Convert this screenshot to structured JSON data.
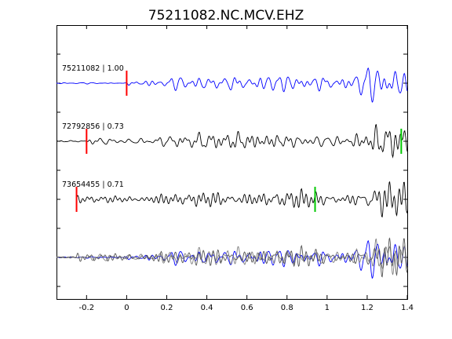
{
  "chart_data": {
    "type": "line",
    "title": "75211082.NC.MCV.EHZ",
    "xlabel": "",
    "ylabel": "",
    "xlim": [
      -0.35,
      1.4
    ],
    "x_ticks": [
      -0.2,
      0,
      0.2,
      0.4,
      0.6,
      0.8,
      1,
      1.2,
      1.4
    ],
    "x_tick_labels": [
      "-0.2",
      "0",
      "0.2",
      "0.4",
      "0.6",
      "0.8",
      "1",
      "1.2",
      "1.4"
    ],
    "grid": false,
    "legend": "none",
    "colors": {
      "reference_trace": "#0000ff",
      "other_trace": "#000000",
      "overlay_other": "#808080",
      "p_pick": "#ff0000",
      "s_pick": "#00c800",
      "axis": "#000000"
    },
    "traces": [
      {
        "label": "75211082 | 1.00",
        "event_id": "75211082",
        "correlation": 1.0,
        "start": -0.35,
        "p_pick": 0.0,
        "s_pick": null,
        "color": "blue"
      },
      {
        "label": "72792856 | 0.73",
        "event_id": "72792856",
        "correlation": 0.73,
        "start": -0.35,
        "p_pick": -0.2,
        "s_pick": 1.37,
        "color": "black"
      },
      {
        "label": "73654455 | 0.71",
        "event_id": "73654455",
        "correlation": 0.71,
        "start": -0.25,
        "p_pick": -0.25,
        "s_pick": 0.94,
        "color": "black"
      }
    ],
    "overlay": {
      "label": "",
      "traces": [
        "75211082",
        "72792856",
        "73654455"
      ]
    }
  }
}
